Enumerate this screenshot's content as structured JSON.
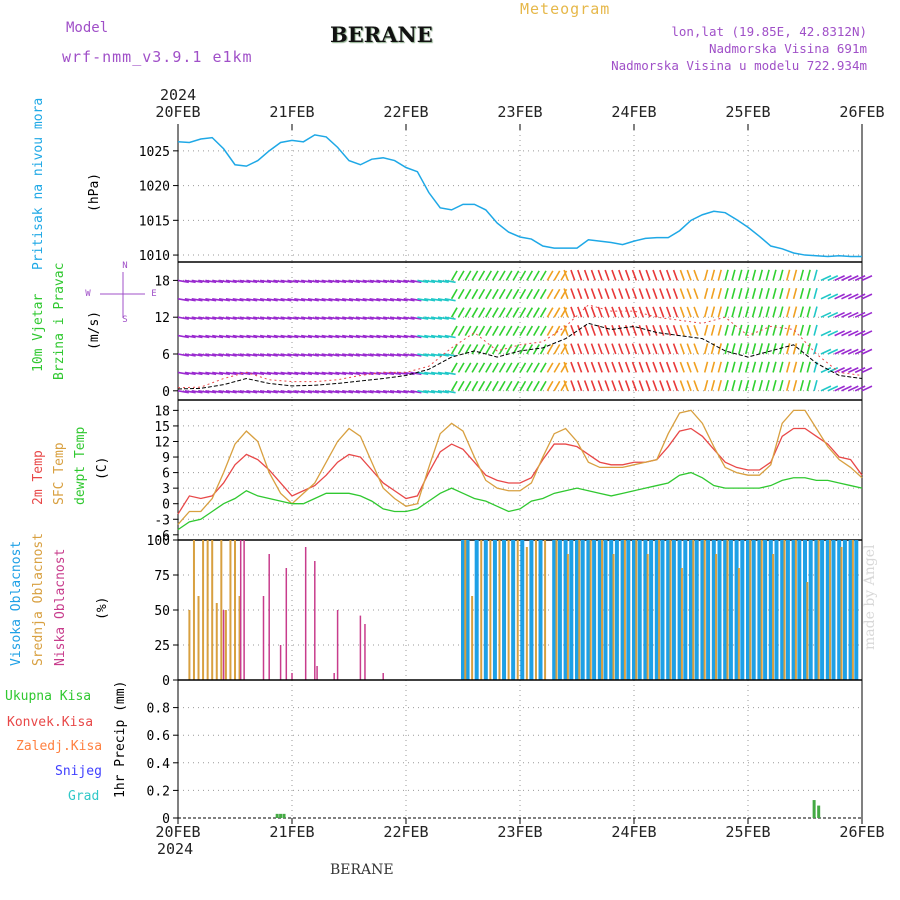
{
  "header": {
    "model_label": "Model",
    "model_name": "wrf-nmm_v3.9.1  e1km",
    "station": "BERANE",
    "meteogram_label": "Meteogram",
    "lonlat": "lon,lat (19.85E, 42.8312N)",
    "elevation": "Nadmorska Visina 691m",
    "model_elevation": "Nadmorska Visina u modelu 722.934m",
    "footer_station": "BERANE",
    "made_by": "made by Angel"
  },
  "x_axis": {
    "year": "2024",
    "ticks": [
      "20FEB",
      "21FEB",
      "22FEB",
      "23FEB",
      "24FEB",
      "25FEB",
      "26FEB"
    ]
  },
  "panels": {
    "pressure": {
      "labels": [
        "Pritisak na nivou mora"
      ],
      "unit": "(hPa)"
    },
    "wind": {
      "labels": [
        "10m Vjetar",
        "Brzina i Pravac"
      ],
      "unit": "(m/s)"
    },
    "temp": {
      "labels": [
        "2m Temp",
        "SFC Temp",
        "dewpt Temp"
      ],
      "unit": "(C)"
    },
    "cloud": {
      "labels": [
        "Visoka Oblacnost",
        "Srednja Oblacnost",
        "Niska Oblacnost"
      ],
      "unit": "(%)"
    },
    "precip": {
      "labels": [
        "Ukupna Kisa",
        "Konvek.Kisa",
        "Zaledj.Kisa",
        "Snijeg",
        "Grad"
      ],
      "unit": "1hr Precip (mm)"
    }
  },
  "colors": {
    "pressure": "#1ea8e6",
    "temp2m": "#e84848",
    "sfc": "#d8a040",
    "dew": "#30c830",
    "high_cloud": "#1ea0e6",
    "mid_cloud": "#d8a040",
    "low_cloud": "#c83c8c",
    "total_rain": "#44aa44",
    "convective": "#e84848",
    "freezing": "#ff8040",
    "snow": "#4040ff",
    "hail": "#30c8c8",
    "purple": "#a050c8",
    "speed_line": "#000000"
  },
  "chart_data": [
    {
      "type": "line",
      "title": "Pritisak na nivou mora",
      "ylabel": "(hPa)",
      "ylim": [
        1009,
        1028
      ],
      "yticks": [
        1010,
        1015,
        1020,
        1025
      ],
      "x_days": [
        0,
        0.1,
        0.2,
        0.3,
        0.4,
        0.5,
        0.6,
        0.7,
        0.8,
        0.9,
        1.0,
        1.1,
        1.2,
        1.3,
        1.4,
        1.5,
        1.6,
        1.7,
        1.8,
        1.9,
        2.0,
        2.1,
        2.2,
        2.3,
        2.4,
        2.5,
        2.6,
        2.7,
        2.8,
        2.9,
        3.0,
        3.1,
        3.2,
        3.3,
        3.4,
        3.5,
        3.6,
        3.7,
        3.8,
        3.9,
        4.0,
        4.1,
        4.2,
        4.3,
        4.4,
        4.5,
        4.6,
        4.7,
        4.8,
        4.9,
        5.0,
        5.1,
        5.2,
        5.3,
        5.4,
        5.5,
        5.6,
        5.7,
        5.8,
        5.9,
        6.0
      ],
      "series": [
        {
          "name": "Pritisak na nivou mora",
          "values": [
            1026.3,
            1026.2,
            1026.7,
            1026.9,
            1025.3,
            1023.0,
            1022.8,
            1023.6,
            1025.0,
            1026.2,
            1026.5,
            1026.3,
            1027.3,
            1027.0,
            1025.5,
            1023.6,
            1023.0,
            1023.8,
            1024.0,
            1023.6,
            1022.6,
            1022.0,
            1019.0,
            1016.8,
            1016.5,
            1017.3,
            1017.3,
            1016.5,
            1014.6,
            1013.3,
            1012.6,
            1012.3,
            1011.3,
            1011.0,
            1011.0,
            1011.0,
            1012.2,
            1012.0,
            1011.8,
            1011.5,
            1012.0,
            1012.4,
            1012.5,
            1012.5,
            1013.5,
            1015.0,
            1015.8,
            1016.3,
            1016.1,
            1015.1,
            1014.0,
            1012.7,
            1011.3,
            1010.9,
            1010.3,
            1010.0,
            1009.9,
            1009.8,
            1009.9,
            1009.8,
            1009.8
          ]
        }
      ]
    },
    {
      "type": "line",
      "title": "10m Vjetar Brzina i Pravac",
      "ylabel": "(m/s)",
      "ylim": [
        -1.5,
        21
      ],
      "yticks": [
        0,
        6,
        12,
        18
      ],
      "x_days": [
        0,
        0.2,
        0.4,
        0.6,
        0.8,
        1.0,
        1.2,
        1.4,
        1.6,
        1.8,
        2.0,
        2.2,
        2.4,
        2.6,
        2.8,
        3.0,
        3.2,
        3.4,
        3.6,
        3.8,
        4.0,
        4.2,
        4.4,
        4.6,
        4.8,
        5.0,
        5.2,
        5.4,
        5.6,
        5.8,
        6.0
      ],
      "series": [
        {
          "name": "speed",
          "values": [
            0.3,
            0.4,
            1.0,
            2.0,
            1.2,
            0.8,
            0.9,
            1.2,
            1.6,
            2.0,
            2.5,
            3.5,
            5.5,
            6.5,
            5.5,
            6.5,
            7.0,
            8.5,
            11.0,
            10.0,
            10.5,
            9.5,
            9.0,
            8.5,
            6.5,
            5.5,
            6.5,
            7.5,
            4.5,
            2.5,
            2.0
          ]
        },
        {
          "name": "gust",
          "values": [
            0.5,
            0.6,
            2.0,
            3.0,
            1.8,
            1.5,
            1.5,
            1.8,
            2.5,
            3.0,
            3.0,
            4.0,
            7.0,
            9.5,
            6.5,
            7.5,
            8.0,
            10.5,
            14.0,
            13.0,
            13.0,
            12.0,
            11.5,
            11.0,
            12.0,
            9.0,
            10.5,
            10.0,
            6.0,
            3.0,
            2.5
          ]
        }
      ]
    },
    {
      "type": "line",
      "title": "2m Temp / SFC Temp / dewpt Temp",
      "ylabel": "(C)",
      "ylim": [
        -7,
        20
      ],
      "yticks": [
        -6,
        -3,
        0,
        3,
        6,
        9,
        12,
        15,
        18
      ],
      "x_days": [
        0,
        0.1,
        0.2,
        0.3,
        0.4,
        0.5,
        0.6,
        0.7,
        0.8,
        0.9,
        1.0,
        1.1,
        1.2,
        1.3,
        1.4,
        1.5,
        1.6,
        1.7,
        1.8,
        1.9,
        2.0,
        2.1,
        2.2,
        2.3,
        2.4,
        2.5,
        2.6,
        2.7,
        2.8,
        2.9,
        3.0,
        3.1,
        3.2,
        3.3,
        3.4,
        3.5,
        3.6,
        3.7,
        3.8,
        3.9,
        4.0,
        4.1,
        4.2,
        4.3,
        4.4,
        4.5,
        4.6,
        4.7,
        4.8,
        4.9,
        5.0,
        5.1,
        5.2,
        5.3,
        5.4,
        5.5,
        5.6,
        5.7,
        5.8,
        5.9,
        6.0
      ],
      "series": [
        {
          "name": "2m Temp",
          "values": [
            -2.0,
            1.5,
            1.0,
            1.5,
            4.0,
            7.5,
            9.5,
            8.5,
            6.5,
            4.0,
            1.5,
            2.5,
            3.5,
            5.5,
            8.0,
            9.5,
            9.0,
            6.5,
            4.0,
            2.5,
            1.0,
            1.5,
            6.0,
            10.0,
            11.5,
            10.5,
            8.0,
            5.5,
            4.5,
            4.0,
            4.0,
            5.0,
            8.5,
            11.5,
            11.5,
            11.0,
            9.5,
            8.0,
            7.5,
            7.5,
            8.0,
            8.0,
            8.5,
            11.0,
            14.0,
            14.5,
            13.0,
            10.5,
            8.0,
            7.0,
            6.5,
            6.5,
            8.0,
            13.0,
            14.5,
            14.5,
            13.0,
            11.5,
            9.0,
            8.5,
            5.5
          ]
        },
        {
          "name": "SFC Temp",
          "values": [
            -4.0,
            -1.5,
            -1.5,
            1.0,
            6.0,
            11.5,
            14.0,
            12.0,
            6.0,
            2.0,
            0.0,
            2.0,
            4.0,
            8.0,
            12.0,
            14.5,
            13.0,
            8.0,
            3.0,
            1.0,
            -0.5,
            0.0,
            7.0,
            13.5,
            15.5,
            14.0,
            9.0,
            4.5,
            3.0,
            2.5,
            2.5,
            4.0,
            9.0,
            13.5,
            14.5,
            12.0,
            8.0,
            7.0,
            7.0,
            7.0,
            7.5,
            8.0,
            8.5,
            13.5,
            17.5,
            18.0,
            15.5,
            11.0,
            7.0,
            6.0,
            5.5,
            5.5,
            7.5,
            15.5,
            18.0,
            18.0,
            14.5,
            11.0,
            8.5,
            7.0,
            5.0
          ]
        },
        {
          "name": "dewpt Temp",
          "values": [
            -5.0,
            -3.5,
            -3.0,
            -1.5,
            0.0,
            1.0,
            2.5,
            1.5,
            1.0,
            0.5,
            0.0,
            0.0,
            1.0,
            2.0,
            2.0,
            2.0,
            1.5,
            0.5,
            -1.0,
            -1.5,
            -1.5,
            -1.0,
            0.5,
            2.0,
            3.0,
            2.0,
            1.0,
            0.5,
            -0.5,
            -1.5,
            -1.0,
            0.5,
            1.0,
            2.0,
            2.5,
            3.0,
            2.5,
            2.0,
            1.5,
            2.0,
            2.5,
            3.0,
            3.5,
            4.0,
            5.5,
            6.0,
            5.0,
            3.5,
            3.0,
            3.0,
            3.0,
            3.0,
            3.5,
            4.5,
            5.0,
            5.0,
            4.5,
            4.5,
            4.0,
            3.5,
            3.0
          ]
        }
      ]
    },
    {
      "type": "bar",
      "title": "Visoka / Srednja / Niska Oblacnost",
      "ylabel": "(%)",
      "ylim": [
        0,
        100
      ],
      "yticks": [
        0,
        25,
        50,
        75,
        100
      ],
      "series": [
        {
          "name": "Visoka Oblacnost",
          "x_days": [
            2.5,
            2.54,
            2.62,
            2.7,
            2.78,
            2.86,
            2.94,
            3.02,
            3.1,
            3.18,
            3.3,
            3.35,
            3.4,
            3.45,
            3.5,
            3.55,
            3.6,
            3.65,
            3.7,
            3.75,
            3.8,
            3.85,
            3.9,
            3.95,
            4.0,
            4.05,
            4.1,
            4.15,
            4.2,
            4.25,
            4.3,
            4.35,
            4.4,
            4.45,
            4.5,
            4.55,
            4.6,
            4.65,
            4.7,
            4.75,
            4.8,
            4.85,
            4.9,
            4.95,
            5.0,
            5.05,
            5.1,
            5.15,
            5.2,
            5.25,
            5.3,
            5.35,
            5.4,
            5.45,
            5.5,
            5.55,
            5.6,
            5.65,
            5.7,
            5.75,
            5.8,
            5.85,
            5.9,
            5.95
          ],
          "values": [
            100,
            100,
            100,
            100,
            100,
            100,
            100,
            100,
            100,
            100,
            100,
            100,
            100,
            100,
            100,
            100,
            100,
            100,
            100,
            100,
            100,
            100,
            100,
            100,
            100,
            100,
            100,
            100,
            100,
            100,
            100,
            100,
            100,
            100,
            100,
            100,
            100,
            100,
            100,
            100,
            100,
            100,
            100,
            100,
            100,
            100,
            100,
            100,
            100,
            100,
            100,
            100,
            100,
            100,
            100,
            100,
            100,
            100,
            100,
            100,
            100,
            100,
            100,
            100
          ]
        },
        {
          "name": "Srednja Oblacnost",
          "x_days": [
            0.1,
            0.14,
            0.18,
            0.22,
            0.26,
            0.3,
            0.34,
            0.38,
            0.42,
            0.46,
            0.5,
            0.54,
            2.52,
            2.58,
            2.66,
            2.74,
            2.82,
            2.9,
            2.98,
            3.06,
            3.14,
            3.22,
            3.32,
            3.42,
            3.52,
            3.62,
            3.72,
            3.82,
            3.92,
            4.02,
            4.12,
            4.22,
            4.32,
            4.42,
            4.52,
            4.62,
            4.72,
            4.82,
            4.92,
            5.02,
            5.12,
            5.22,
            5.32,
            5.42,
            5.52,
            5.62,
            5.72,
            5.82,
            5.92
          ],
          "values": [
            50,
            100,
            60,
            100,
            100,
            100,
            55,
            100,
            50,
            100,
            100,
            60,
            100,
            60,
            100,
            100,
            100,
            100,
            100,
            95,
            100,
            100,
            100,
            90,
            100,
            100,
            100,
            90,
            100,
            100,
            90,
            100,
            100,
            80,
            100,
            100,
            90,
            100,
            80,
            100,
            100,
            90,
            100,
            100,
            70,
            100,
            100,
            95,
            100
          ]
        },
        {
          "name": "Niska Oblacnost",
          "x_days": [
            0.4,
            0.55,
            0.58,
            0.75,
            0.8,
            0.9,
            0.95,
            1.0,
            1.12,
            1.2,
            1.22,
            1.37,
            1.4,
            1.6,
            1.64,
            1.8
          ],
          "values": [
            50,
            100,
            100,
            60,
            90,
            25,
            80,
            5,
            95,
            85,
            10,
            5,
            50,
            46,
            40,
            5
          ]
        }
      ]
    },
    {
      "type": "bar",
      "title": "1hr Precip",
      "ylabel": "1hr Precip (mm)",
      "ylim": [
        0,
        1.0
      ],
      "yticks": [
        0,
        0.2,
        0.4,
        0.6,
        0.8
      ],
      "series": [
        {
          "name": "Ukupna Kisa",
          "x_days": [
            0.87,
            0.9,
            0.93,
            5.58,
            5.62
          ],
          "values": [
            0.03,
            0.03,
            0.03,
            0.13,
            0.09
          ]
        }
      ]
    }
  ]
}
